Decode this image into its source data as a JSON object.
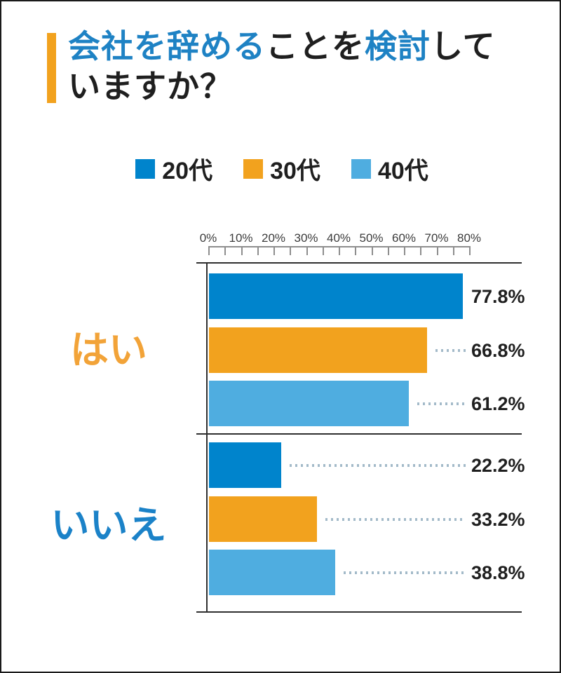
{
  "title": {
    "accent_color": "#f2a21e",
    "segments": [
      {
        "text": "会社を辞める",
        "color": "#1e82c4",
        "break_before": false
      },
      {
        "text": "ことを",
        "color": "#1f1f1f",
        "break_before": false
      },
      {
        "text": "検討",
        "color": "#1e82c4",
        "break_before": false
      },
      {
        "text": "して",
        "color": "#1f1f1f",
        "break_before": false
      },
      {
        "text": "いますか？",
        "color": "#1f1f1f",
        "break_before": true
      }
    ]
  },
  "legend": [
    {
      "label": "20代",
      "color": "#0084cc"
    },
    {
      "label": "30代",
      "color": "#f2a21e"
    },
    {
      "label": "40代",
      "color": "#4fade0"
    }
  ],
  "chart_data": {
    "type": "bar",
    "orientation": "horizontal",
    "title": "会社を辞めることを検討していますか？",
    "categories": [
      "はい",
      "いいえ"
    ],
    "category_colors": [
      "#f2a338",
      "#1b82c8"
    ],
    "series": [
      {
        "name": "20代",
        "color": "#0084cc",
        "values": [
          77.8,
          22.2
        ]
      },
      {
        "name": "30代",
        "color": "#f2a21e",
        "values": [
          66.8,
          33.2
        ]
      },
      {
        "name": "40代",
        "color": "#4fade0",
        "values": [
          61.2,
          38.8
        ]
      }
    ],
    "value_labels": [
      [
        "77.8%",
        "66.8%",
        "61.2%"
      ],
      [
        "22.2%",
        "33.2%",
        "38.8%"
      ]
    ],
    "xlim": [
      0,
      80
    ],
    "x_ticks": [
      "0%",
      "10%",
      "20%",
      "30%",
      "40%",
      "50%",
      "60%",
      "70%",
      "80%"
    ],
    "minor_tick_step": 5,
    "value_suffix": "%",
    "legend_position": "top",
    "grid": false
  }
}
